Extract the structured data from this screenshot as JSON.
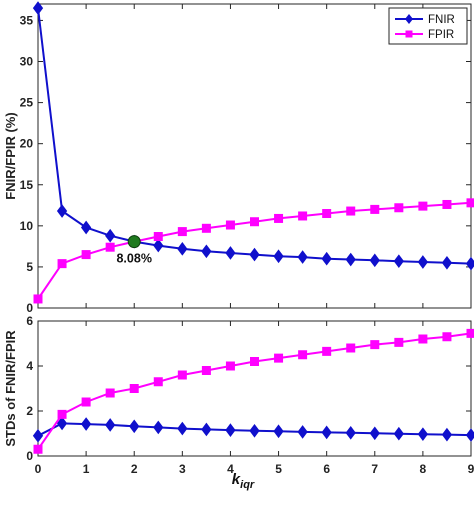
{
  "chart_data": [
    {
      "id": "top",
      "type": "line",
      "xlabel_main": "k",
      "xlabel_sub": "iqr",
      "ylabel": "FNIR/FPIR (%)",
      "xlim": [
        0,
        9
      ],
      "ylim": [
        0,
        37
      ],
      "yticks": [
        0,
        5,
        10,
        15,
        20,
        25,
        30,
        35
      ],
      "xticks": [],
      "grid": false,
      "legend_position": "top-right",
      "x": [
        0,
        0.5,
        1,
        1.5,
        2,
        2.5,
        3,
        3.5,
        4,
        4.5,
        5,
        5.5,
        6,
        6.5,
        7,
        7.5,
        8,
        8.5,
        9
      ],
      "series": [
        {
          "name": "FNIR",
          "color": "#1010cc",
          "marker": "diamond",
          "values": [
            36.5,
            11.8,
            9.8,
            8.8,
            8.08,
            7.6,
            7.2,
            6.9,
            6.7,
            6.5,
            6.3,
            6.2,
            6.0,
            5.9,
            5.8,
            5.7,
            5.6,
            5.5,
            5.4
          ]
        },
        {
          "name": "FPIR",
          "color": "#ff00ff",
          "marker": "square",
          "values": [
            1.1,
            5.4,
            6.5,
            7.4,
            8.08,
            8.7,
            9.3,
            9.7,
            10.1,
            10.5,
            10.9,
            11.2,
            11.5,
            11.8,
            12.0,
            12.2,
            12.4,
            12.6,
            12.8
          ]
        }
      ],
      "annotation": {
        "x": 2,
        "y": 8.08,
        "label": "8.08%",
        "color": "#1f7a1f"
      }
    },
    {
      "id": "bottom",
      "type": "line",
      "xlabel": "",
      "ylabel": "STDs of FNIR/FPIR",
      "xlim": [
        0,
        9
      ],
      "ylim": [
        0,
        6
      ],
      "yticks": [
        0,
        2,
        4,
        6
      ],
      "xticks": [
        0,
        1,
        2,
        3,
        4,
        5,
        6,
        7,
        8,
        9
      ],
      "grid": false,
      "x": [
        0,
        0.5,
        1,
        1.5,
        2,
        2.5,
        3,
        3.5,
        4,
        4.5,
        5,
        5.5,
        6,
        6.5,
        7,
        7.5,
        8,
        8.5,
        9
      ],
      "series": [
        {
          "name": "FNIR",
          "color": "#1010cc",
          "marker": "diamond",
          "values": [
            0.9,
            1.45,
            1.42,
            1.38,
            1.32,
            1.27,
            1.22,
            1.18,
            1.15,
            1.12,
            1.1,
            1.07,
            1.05,
            1.03,
            1.01,
            0.99,
            0.97,
            0.95,
            0.93
          ]
        },
        {
          "name": "FPIR",
          "color": "#ff00ff",
          "marker": "square",
          "values": [
            0.3,
            1.85,
            2.4,
            2.8,
            3.0,
            3.3,
            3.6,
            3.8,
            4.0,
            4.2,
            4.35,
            4.5,
            4.65,
            4.8,
            4.95,
            5.05,
            5.2,
            5.3,
            5.45
          ]
        }
      ]
    }
  ]
}
